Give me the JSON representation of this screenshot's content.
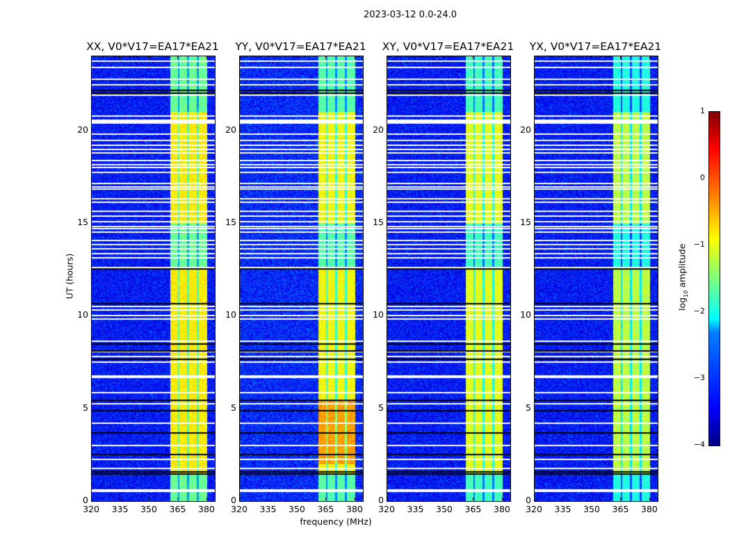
{
  "chart_data": {
    "type": "heatmap",
    "title": "2023-03-12 0.0-24.0",
    "xlabel": "frequency (MHz)",
    "ylabel": "UT (hours)",
    "xlim": [
      320,
      384
    ],
    "ylim": [
      0,
      24
    ],
    "xticks": [
      320,
      335,
      350,
      365,
      380
    ],
    "yticks": [
      0,
      5,
      10,
      15,
      20
    ],
    "panels": [
      {
        "title": "XX, V0*V17=EA17*EA21",
        "band_level": -0.8,
        "background_level": -3.3
      },
      {
        "title": "YY, V0*V17=EA17*EA21",
        "band_level": -0.9,
        "background_level": -3.2
      },
      {
        "title": "XY, V0*V17=EA17*EA21",
        "band_level": -1.0,
        "background_level": -3.3
      },
      {
        "title": "YX, V0*V17=EA17*EA21",
        "band_level": -1.2,
        "background_level": -3.3
      }
    ],
    "signal_subbands_mhz": [
      [
        360.5,
        364.5
      ],
      [
        365.5,
        369.5
      ],
      [
        370.5,
        374.5
      ],
      [
        375.5,
        380
      ]
    ],
    "flagged_hours_white": [
      23.73,
      23.4,
      22.76,
      22.46,
      21.9,
      20.77,
      20.55,
      20.47,
      20.4,
      19.8,
      19.46,
      19.2,
      18.97,
      18.79,
      18.37,
      18.15,
      18.0,
      17.73,
      17.14,
      16.95,
      16.84,
      16.31,
      16.12,
      15.64,
      15.37,
      15.07,
      14.81,
      14.7,
      14.51,
      14.06,
      13.84,
      13.61,
      13.35,
      13.12,
      12.6,
      10.5,
      10.31,
      10.01,
      9.82,
      8.62,
      8.06,
      7.8,
      7.5,
      6.75,
      6.67,
      5.85,
      5.25,
      4.2,
      3.0,
      2.25,
      1.76,
      0.6,
      0.52
    ],
    "zero_hours_black": [
      22.16,
      22.01,
      12.52,
      10.65,
      8.47,
      8.1,
      7.65,
      5.44,
      4.87,
      3.67,
      2.51,
      1.57,
      1.46
    ],
    "colorbar": {
      "label": "log10 amplitude",
      "label_main": "log",
      "label_sub": "10",
      "label_rest": " amplitude",
      "range": [
        -4,
        1
      ],
      "ticks": [
        "1",
        "0",
        "−1",
        "−2",
        "−3",
        "−4"
      ],
      "colormap": "jet"
    }
  }
}
